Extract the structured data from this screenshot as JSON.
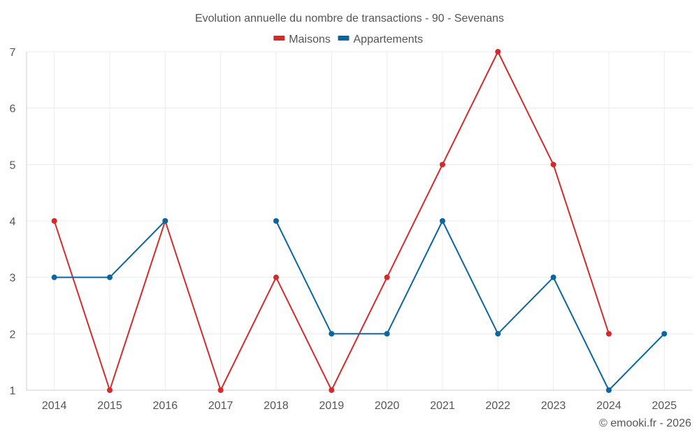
{
  "chart_data": {
    "type": "line",
    "title": "Evolution annuelle du nombre de transactions - 90 - Sevenans",
    "categories": [
      "2014",
      "2015",
      "2016",
      "2017",
      "2018",
      "2019",
      "2020",
      "2021",
      "2022",
      "2023",
      "2024",
      "2025"
    ],
    "series": [
      {
        "name": "Maisons",
        "color": "#d42a2a",
        "values": [
          4,
          1,
          4,
          1,
          3,
          1,
          3,
          5,
          7,
          5,
          2,
          null
        ]
      },
      {
        "name": "Appartements",
        "color": "#0a65a0",
        "values": [
          3,
          3,
          4,
          null,
          4,
          2,
          2,
          4,
          2,
          3,
          1,
          2
        ]
      }
    ],
    "ylim": [
      1,
      7
    ],
    "yticks": [
      1,
      2,
      3,
      4,
      5,
      6,
      7
    ],
    "grid": true,
    "legend": "top-center",
    "xlabel": "",
    "ylabel": ""
  },
  "credit": "© emooki.fr - 2026"
}
